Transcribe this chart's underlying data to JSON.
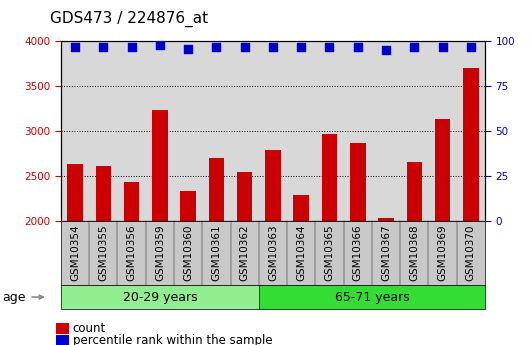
{
  "title": "GDS473 / 224876_at",
  "samples": [
    "GSM10354",
    "GSM10355",
    "GSM10356",
    "GSM10359",
    "GSM10360",
    "GSM10361",
    "GSM10362",
    "GSM10363",
    "GSM10364",
    "GSM10365",
    "GSM10366",
    "GSM10367",
    "GSM10368",
    "GSM10369",
    "GSM10370"
  ],
  "counts": [
    2630,
    2610,
    2430,
    3230,
    2330,
    2700,
    2540,
    2790,
    2290,
    2970,
    2870,
    2030,
    2660,
    3130,
    3700
  ],
  "percentile_ranks": [
    97,
    97,
    97,
    98,
    96,
    97,
    97,
    97,
    97,
    97,
    97,
    95,
    97,
    97,
    97
  ],
  "group1_label": "20-29 years",
  "group1_count": 7,
  "group2_label": "65-71 years",
  "group2_count": 8,
  "age_label": "age",
  "ylim_left": [
    2000,
    4000
  ],
  "ylim_right": [
    0,
    100
  ],
  "yticks_left": [
    2000,
    2500,
    3000,
    3500,
    4000
  ],
  "yticks_right": [
    0,
    25,
    50,
    75,
    100
  ],
  "bar_color": "#CC0000",
  "dot_color": "#0000CC",
  "group1_bg": "#90EE90",
  "group2_bg": "#33DD33",
  "plot_bg": "#d8d8d8",
  "xtick_bg": "#c8c8c8",
  "fig_bg": "#ffffff",
  "grid_color": "#000000",
  "title_fontsize": 11,
  "tick_fontsize": 7.5,
  "legend_fontsize": 8.5,
  "bar_width": 0.55,
  "right_axis_label_color": "#0000BB",
  "left_axis_label_color": "#CC0000",
  "dot_size": 30
}
